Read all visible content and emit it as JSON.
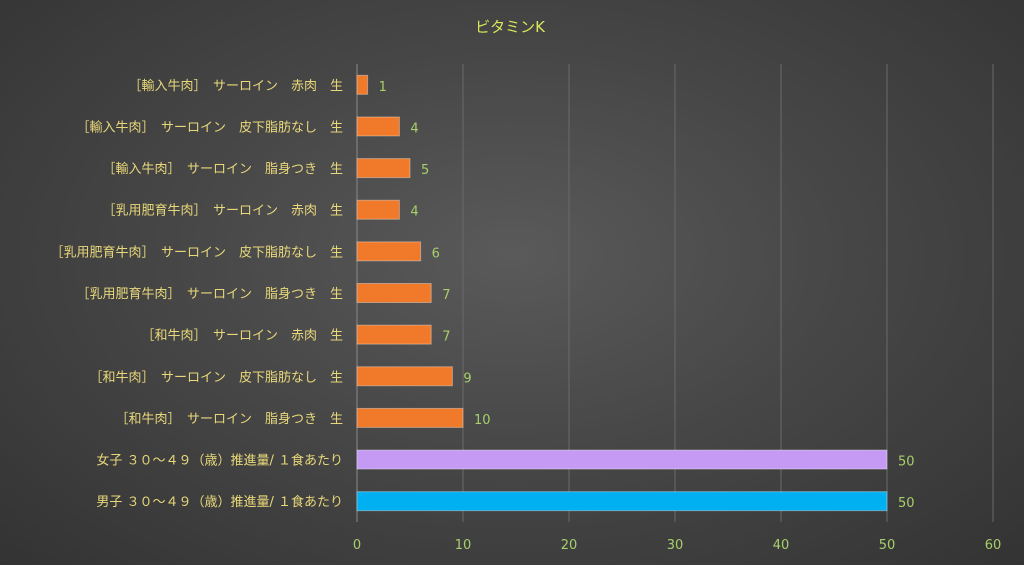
{
  "chart_data": {
    "type": "bar",
    "orientation": "horizontal",
    "title": "ビタミンK",
    "xlim": [
      0,
      60
    ],
    "x_ticks": [
      0,
      10,
      20,
      30,
      40,
      50,
      60
    ],
    "grid": true,
    "legend": "none",
    "categories": [
      "［輸入牛肉］　サーロイン　赤肉　生",
      "［輸入牛肉］　サーロイン　皮下脂肪なし　生",
      "［輸入牛肉］　サーロイン　脂身つき　生",
      "［乳用肥育牛肉］　サーロイン　赤肉　生",
      "［乳用肥育牛肉］　サーロイン　皮下脂肪なし　生",
      "［乳用肥育牛肉］　サーロイン　脂身つき　生",
      "［和牛肉］　サーロイン　赤肉　生",
      "［和牛肉］　サーロイン　皮下脂肪なし　生",
      "［和牛肉］　サーロイン　脂身つき　生",
      "女子 ３０～４９（歳）推進量/ １食あたり",
      "男子 ３０～４９（歳）推進量/ １食あたり"
    ],
    "values": [
      1,
      4,
      5,
      4,
      6,
      7,
      7,
      9,
      10,
      50,
      50
    ],
    "bar_colors": [
      "#f07a2a",
      "#f07a2a",
      "#f07a2a",
      "#f07a2a",
      "#f07a2a",
      "#f07a2a",
      "#f07a2a",
      "#f07a2a",
      "#f07a2a",
      "#c49af5",
      "#00b0f0"
    ]
  }
}
